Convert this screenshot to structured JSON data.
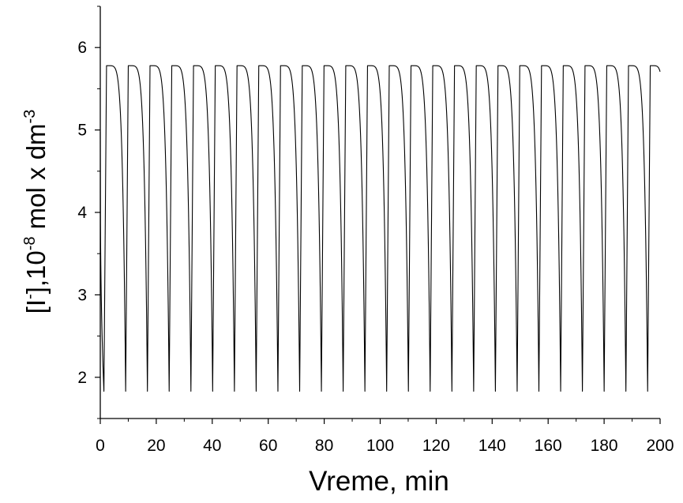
{
  "chart_data": {
    "type": "line",
    "title": "",
    "xlabel": "Vreme, min",
    "ylabel": {
      "prefix": "[I",
      "charge": "-",
      "middle": "],10",
      "exp1": "-8",
      "unit": " mol x dm",
      "exp2": "-3"
    },
    "xlim": [
      0,
      200
    ],
    "ylim": [
      1.5,
      6.5
    ],
    "x_ticks": [
      0,
      20,
      40,
      60,
      80,
      100,
      120,
      140,
      160,
      180,
      200
    ],
    "x_tick_labels": [
      "0",
      "20",
      "40",
      "60",
      "80",
      "100",
      "120",
      "140",
      "160",
      "180",
      "200"
    ],
    "y_ticks": [
      2,
      3,
      4,
      5,
      6
    ],
    "y_tick_labels": [
      "2",
      "3",
      "4",
      "5",
      "6"
    ],
    "grid": false,
    "legend": "none",
    "series": [
      {
        "line_color": "#000000",
        "oscillation": {
          "start_value": 4.98,
          "max": 5.78,
          "min": 1.83,
          "first_min_x": 1.3,
          "period": 7.77,
          "end_x": 200,
          "end_value": 4.98
        }
      }
    ]
  }
}
